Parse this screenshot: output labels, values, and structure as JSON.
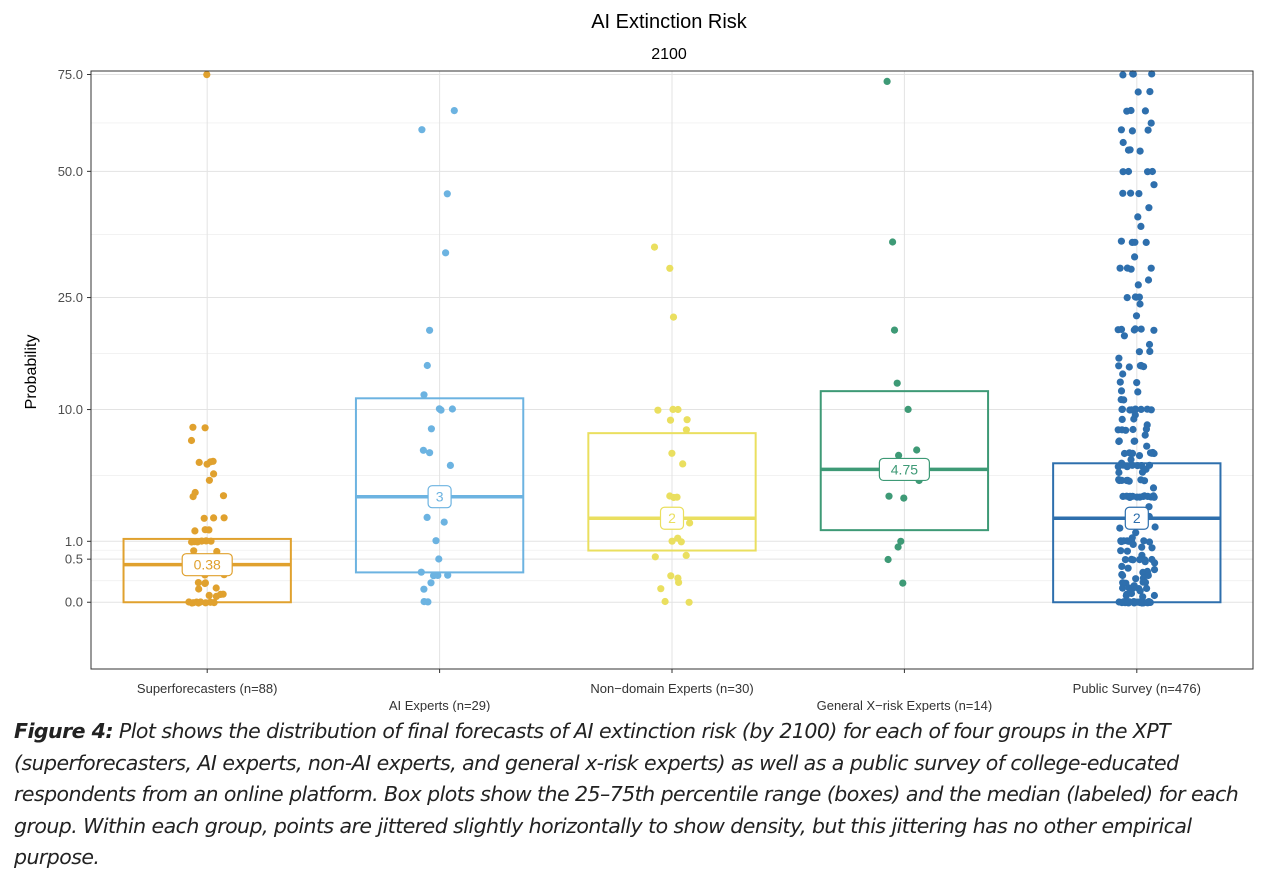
{
  "chart_data": {
    "type": "box",
    "title": "AI Extinction Risk",
    "subtitle": "2100",
    "ylabel": "Probability",
    "xlabel": "",
    "y_scale": "sqrt",
    "ylim": [
      -1.2,
      76
    ],
    "yticks": [
      0.0,
      0.5,
      1.0,
      10.0,
      25.0,
      50.0,
      75.0
    ],
    "ytick_labels": [
      "0.0",
      "0.5",
      "1.0",
      "10.0",
      "25.0",
      "50.0",
      "75.0"
    ],
    "grid": true,
    "groups": [
      {
        "label": "Superforecasters (n=88)",
        "color": "#E0A12E",
        "q1": 0.0,
        "median": 0.38,
        "q3": 1.08,
        "median_label": "0.38",
        "points": [
          75,
          8.2,
          8.2,
          7.1,
          5.3,
          5.3,
          5.3,
          5.1,
          4.4,
          4.0,
          3.2,
          3.1,
          3.0,
          1.9,
          1.9,
          1.9,
          1.4,
          1.4,
          1.4,
          1.0,
          1.0,
          1.0,
          1.0,
          1.0,
          1.0,
          0.7,
          0.7,
          0.4,
          0.4,
          0.3,
          0.2,
          0.2,
          0.1,
          0.1,
          0.1,
          0.05,
          0.05,
          0.02,
          0.02,
          0.01,
          0.01,
          0.0,
          0.0,
          0.0,
          0.0,
          0.0,
          0.0,
          0.0,
          0.0,
          0.0,
          0.0
        ]
      },
      {
        "label": "AI Experts (n=29)",
        "color": "#6CB3E1",
        "q1": 0.24,
        "median": 3.0,
        "q3": 11.2,
        "median_label": "3",
        "points": [
          65,
          60,
          45,
          33,
          20,
          15,
          11.5,
          10,
          10,
          10,
          8.1,
          6.2,
          6.0,
          5.0,
          1.9,
          1.7,
          1.0,
          0.5,
          0.25,
          0.2,
          0.2,
          0.2,
          0.1,
          0.05,
          0.0,
          0.0
        ]
      },
      {
        "label": "Non−domain Experts (n=30)",
        "color": "#EADF5F",
        "q1": 0.72,
        "median": 1.9,
        "q3": 7.7,
        "median_label": "2",
        "points": [
          34,
          30,
          22,
          10,
          10,
          10,
          9.0,
          9.0,
          8.0,
          6.0,
          5.2,
          3.0,
          3.0,
          3.0,
          1.7,
          1.1,
          1.0,
          1.0,
          0.6,
          0.55,
          0.2,
          0.15,
          0.1,
          0.05,
          0.0,
          0.0
        ]
      },
      {
        "label": "General X−risk Experts (n=14)",
        "color": "#3E9A76",
        "q1": 1.4,
        "median": 4.75,
        "q3": 12.0,
        "median_label": "4.75",
        "points": [
          73,
          35,
          20,
          13,
          10,
          6.2,
          5.8,
          4.0,
          3.0,
          2.9,
          1.0,
          0.8,
          0.5,
          0.1
        ]
      },
      {
        "label": "Public Survey (n=476)",
        "color": "#2E6FAD",
        "q1": 0.0,
        "median": 1.9,
        "q3": 5.2,
        "median_label": "2",
        "points": [
          75,
          75,
          75,
          75,
          70,
          70,
          65,
          65,
          65,
          62,
          60,
          60,
          60,
          57,
          55,
          55,
          55,
          50,
          50,
          50,
          50,
          47,
          45,
          45,
          45,
          42,
          40,
          38,
          35,
          35,
          35,
          35,
          32,
          30,
          30,
          30,
          30,
          28,
          27,
          25,
          25,
          25,
          25,
          24,
          22,
          20,
          20,
          20,
          20,
          20,
          20,
          19,
          18,
          17,
          17,
          16,
          15,
          15,
          15,
          15,
          15,
          15,
          14,
          13,
          13,
          12,
          12,
          11,
          11,
          10,
          10,
          10,
          10,
          10,
          10,
          10,
          10,
          10,
          9.5,
          9,
          9,
          8.5,
          8,
          8,
          8,
          8,
          8,
          7.5,
          7,
          7,
          7,
          7,
          6.5,
          6,
          6,
          6,
          6,
          6,
          6,
          6,
          5.8,
          5.5,
          5.2,
          5,
          5,
          5,
          5,
          5,
          5,
          5,
          5,
          5,
          4.8,
          4.5,
          4.5,
          4,
          4,
          4,
          4,
          4,
          4,
          4,
          4,
          3.5,
          3,
          3,
          3,
          3,
          3,
          3,
          3,
          3,
          3,
          3,
          3,
          3,
          3,
          2.5,
          2,
          2,
          2,
          2,
          2,
          2,
          1.8,
          1.5,
          1.5,
          1.3,
          1.1,
          1,
          1,
          1,
          1,
          1,
          1,
          1,
          1,
          1,
          1,
          1,
          0.9,
          0.8,
          0.8,
          0.7,
          0.7,
          0.6,
          0.5,
          0.5,
          0.5,
          0.5,
          0.5,
          0.5,
          0.45,
          0.4,
          0.35,
          0.3,
          0.3,
          0.25,
          0.25,
          0.2,
          0.2,
          0.2,
          0.2,
          0.15,
          0.15,
          0.1,
          0.1,
          0.1,
          0.1,
          0.1,
          0.08,
          0.05,
          0.05,
          0.05,
          0.05,
          0.05,
          0.03,
          0.02,
          0.02,
          0.01,
          0.01,
          0.01,
          0.0,
          0.0,
          0.0,
          0.0,
          0.0,
          0.0,
          0.0,
          0.0,
          0.0,
          0.0,
          0.0,
          0.0,
          0.0,
          0.0,
          0.0,
          0.0,
          0.0,
          0.0,
          0.0,
          0.0
        ]
      }
    ]
  },
  "caption": {
    "label": "Figure 4:",
    "text": " Plot shows the distribution of final forecasts of AI extinction risk (by 2100) for each of four groups in the XPT (superforecasters, AI experts, non-AI experts, and general x-risk experts) as well as a public survey of college-educated respondents from an online platform. Box plots show the 25–75th percentile range (boxes) and the median (labeled) for each group. Within each group, points are jittered slightly horizontally to show density, but this jittering has no other empirical purpose."
  }
}
